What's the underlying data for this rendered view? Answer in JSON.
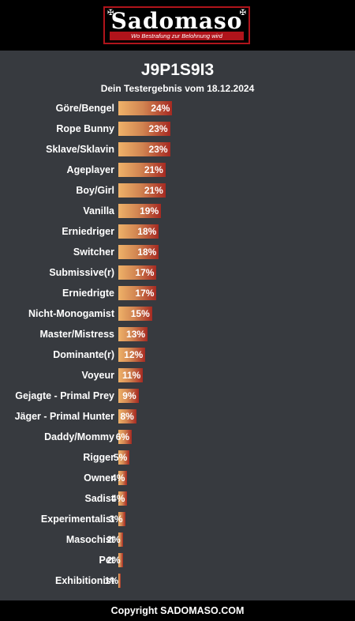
{
  "logo": {
    "name": "Sadomaso",
    "tagline": "Wo Bestrafung zur Belohnung wird"
  },
  "title": "J9P1S9I3",
  "subtitle": "Dein Testergebnis vom 18.12.2024",
  "footer": "Copyright SADOMASO.COM",
  "colors": {
    "background": "#373a3f",
    "header": "#000000",
    "bar_start": "#efb269",
    "bar_end": "#a62a22",
    "accent": "#b0141b"
  },
  "chart_data": {
    "type": "bar",
    "orientation": "horizontal",
    "title": "J9P1S9I3",
    "subtitle": "Dein Testergebnis vom 18.12.2024",
    "categories": [
      "Göre/Bengel",
      "Rope Bunny",
      "Sklave/Sklavin",
      "Ageplayer",
      "Boy/Girl",
      "Vanilla",
      "Erniedriger",
      "Switcher",
      "Submissive(r)",
      "Erniedrigte",
      "Nicht-Monogamist",
      "Master/Mistress",
      "Dominante(r)",
      "Voyeur",
      "Gejagte - Primal Prey",
      "Jäger - Primal Hunter",
      "Daddy/Mommy",
      "Rigger",
      "Owner",
      "Sadist",
      "Experimentalist",
      "Masochist",
      "Pet",
      "Exhibitionist"
    ],
    "values": [
      24,
      23,
      23,
      21,
      21,
      19,
      18,
      18,
      17,
      17,
      15,
      13,
      12,
      11,
      9,
      8,
      6,
      5,
      4,
      4,
      3,
      2,
      2,
      1
    ],
    "labels": [
      "24%",
      "23%",
      "23%",
      "21%",
      "21%",
      "19%",
      "18%",
      "18%",
      "17%",
      "17%",
      "15%",
      "13%",
      "12%",
      "11%",
      "9%",
      "8%",
      "6%",
      "5%",
      "4%",
      "4%",
      "3%",
      "2%",
      "2%",
      "1%"
    ],
    "unit": "%",
    "grid": false,
    "legend": "none"
  }
}
